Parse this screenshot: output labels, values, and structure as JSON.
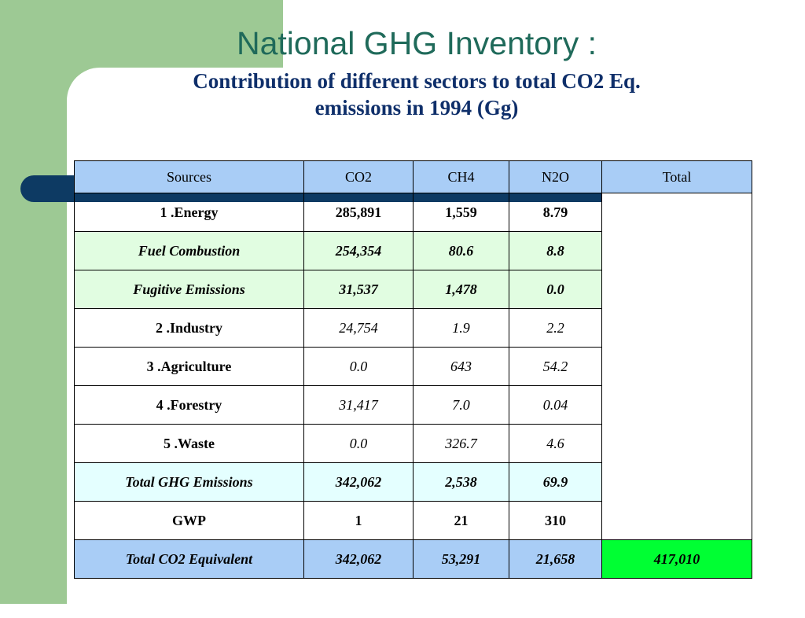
{
  "slide": {
    "title": "National GHG Inventory :",
    "subtitle_line1": "Contribution of different sectors to total CO2 Eq.",
    "subtitle_line2": "emissions in 1994 (Gg)"
  },
  "colors": {
    "green_bar": "#9dc994",
    "navy": "#0d3a63",
    "title": "#1f6a5a",
    "subtitle": "#0f2f6a",
    "header_blue": "#a9cdf6",
    "mint": "#e1fde1",
    "cyan": "#e4ffff",
    "total_green": "#00ff33"
  },
  "table": {
    "headers": [
      "Sources",
      "CO2",
      "CH4",
      "N2O",
      "Total"
    ],
    "rows": [
      {
        "source": "1  .Energy",
        "co2": "285,891",
        "ch4": "1,559",
        "n2o": "8.79"
      },
      {
        "source": "Fuel Combustion",
        "co2": "254,354",
        "ch4": "80.6",
        "n2o": "8.8"
      },
      {
        "source": "Fugitive Emissions",
        "co2": "31,537",
        "ch4": "1,478",
        "n2o": "0.0"
      },
      {
        "source": "2  .Industry",
        "co2": "24,754",
        "ch4": "1.9",
        "n2o": "2.2"
      },
      {
        "source": "3  .Agriculture",
        "co2": "0.0",
        "ch4": "643",
        "n2o": "54.2"
      },
      {
        "source": "4  .Forestry",
        "co2": "31,417",
        "ch4": "7.0",
        "n2o": "0.04"
      },
      {
        "source": "5 .Waste",
        "co2": "0.0",
        "ch4": "326.7",
        "n2o": "4.6"
      },
      {
        "source": "Total GHG Emissions",
        "co2": "342,062",
        "ch4": "2,538",
        "n2o": "69.9"
      },
      {
        "source": "GWP",
        "co2": "1",
        "ch4": "21",
        "n2o": "310"
      },
      {
        "source": "Total CO2 Equivalent",
        "co2": "342,062",
        "ch4": "53,291",
        "n2o": "21,658",
        "total": "417,010"
      }
    ]
  }
}
